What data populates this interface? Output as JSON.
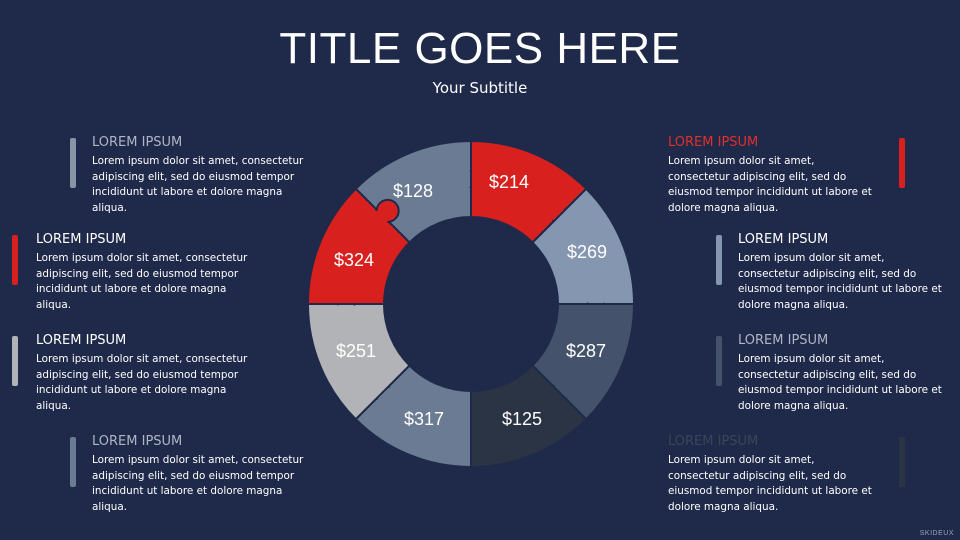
{
  "title": "TITLE GOES HERE",
  "subtitle": "Your Subtitle",
  "values": [
    "$128",
    "$214",
    "$269",
    "$287",
    "$125",
    "$317",
    "$251",
    "$324"
  ],
  "colors": {
    "background": "#1f2a4a",
    "red": "#d8201f",
    "steel": "#6b7b93",
    "light_steel": "#8596b0",
    "dark_slate": "#44536b",
    "charcoal": "#2b3444",
    "grey": "#b2b3b6"
  },
  "blocks": [
    {
      "heading": "LOREM IPSUM",
      "text": "Lorem ipsum dolor sit amet, consectetur adipiscing elit, sed do eiusmod tempor incididunt ut labore et dolore magna aliqua."
    },
    {
      "heading": "LOREM IPSUM",
      "text": "Lorem ipsum dolor sit amet, consectetur adipiscing elit, sed do eiusmod tempor incididunt ut labore et dolore magna aliqua."
    },
    {
      "heading": "LOREM IPSUM",
      "text": "Lorem ipsum dolor sit amet, consectetur adipiscing elit, sed do eiusmod tempor incididunt ut labore et dolore magna aliqua."
    },
    {
      "heading": "LOREM IPSUM",
      "text": "Lorem ipsum dolor sit amet, consectetur adipiscing elit, sed do eiusmod tempor incididunt ut labore et dolore magna aliqua."
    },
    {
      "heading": "LOREM IPSUM",
      "text": "Lorem ipsum dolor sit amet, consectetur adipiscing elit, sed do eiusmod tempor incididunt ut labore et dolore magna aliqua."
    },
    {
      "heading": "LOREM IPSUM",
      "text": "Lorem ipsum dolor sit amet, consectetur adipiscing elit, sed do eiusmod tempor incididunt ut labore et dolore magna aliqua."
    },
    {
      "heading": "LOREM IPSUM",
      "text": "Lorem ipsum dolor sit amet, consectetur adipiscing elit, sed do eiusmod tempor incididunt ut labore et dolore magna aliqua."
    },
    {
      "heading": "LOREM IPSUM",
      "text": "Lorem ipsum dolor sit amet, consectetur adipiscing elit, sed do eiusmod tempor incididunt ut labore et dolore magna aliqua."
    }
  ],
  "watermark": "SKIDEUX"
}
